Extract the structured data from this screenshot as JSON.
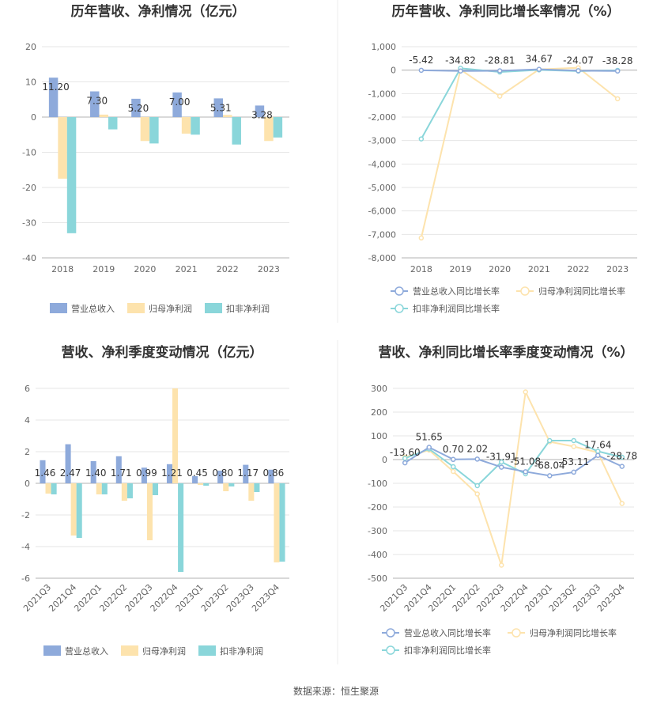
{
  "source_label": "数据来源：恒生聚源",
  "colors": {
    "revenue": "#8eaadb",
    "net_profit": "#fde3ad",
    "deducted": "#8ad6da",
    "grid": "#e6e6e6",
    "axis": "#b3b3b3"
  },
  "chart_data": [
    {
      "id": "annual-bar",
      "type": "bar",
      "title": "历年营收、净利情况（亿元）",
      "categories": [
        "2018",
        "2019",
        "2020",
        "2021",
        "2022",
        "2023"
      ],
      "series": [
        {
          "name": "营业总收入",
          "values": [
            11.2,
            7.3,
            5.2,
            7.0,
            5.31,
            3.28
          ],
          "labels": [
            "11.20",
            "7.30",
            "5.20",
            "7.00",
            "5.31",
            "3.28"
          ]
        },
        {
          "name": "归母净利润",
          "values": [
            -17.5,
            0.7,
            -6.8,
            -4.7,
            0.6,
            -6.8
          ]
        },
        {
          "name": "扣非净利润",
          "values": [
            -33.0,
            -3.5,
            -7.5,
            -5.0,
            -7.8,
            -5.8
          ]
        }
      ],
      "ylim": [
        -40,
        20
      ],
      "yticks": [
        20,
        10,
        0,
        -10,
        -20,
        -30,
        -40
      ],
      "ytick_labels": [
        "20",
        "10",
        "0",
        "-10",
        "-20",
        "-30",
        "-40"
      ],
      "grid": true,
      "legend": "bottom"
    },
    {
      "id": "annual-line",
      "type": "line",
      "title": "历年营收、净利同比增长率情况（%）",
      "categories": [
        "2018",
        "2019",
        "2020",
        "2021",
        "2022",
        "2023"
      ],
      "series": [
        {
          "name": "营业总收入同比增长率",
          "values": [
            -5.42,
            -34.82,
            -28.81,
            34.67,
            -24.07,
            -38.28
          ],
          "labels": [
            "-5.42",
            "-34.82",
            "-28.81",
            "34.67",
            "-24.07",
            "-38.28"
          ]
        },
        {
          "name": "归母净利润同比增长率",
          "values": [
            -7150,
            20,
            -1110,
            30,
            100,
            -1220
          ]
        },
        {
          "name": "扣非净利润同比增长率",
          "values": [
            -2930,
            80,
            -80,
            10,
            -40,
            -10
          ]
        }
      ],
      "ylim": [
        -8000,
        1000
      ],
      "yticks": [
        1000,
        0,
        -1000,
        -2000,
        -3000,
        -4000,
        -5000,
        -6000,
        -7000,
        -8000
      ],
      "ytick_labels": [
        "1,000",
        "0",
        "-1,000",
        "-2,000",
        "-3,000",
        "-4,000",
        "-5,000",
        "-6,000",
        "-7,000",
        "-8,000"
      ],
      "grid": true,
      "legend": "bottom"
    },
    {
      "id": "quarter-bar",
      "type": "bar",
      "title": "营收、净利季度变动情况（亿元）",
      "categories": [
        "2021Q3",
        "2021Q4",
        "2022Q1",
        "2022Q2",
        "2022Q3",
        "2022Q4",
        "2023Q1",
        "2023Q2",
        "2023Q3",
        "2023Q4"
      ],
      "series": [
        {
          "name": "营业总收入",
          "values": [
            1.46,
            2.47,
            1.4,
            1.71,
            0.99,
            1.21,
            0.45,
            0.8,
            1.17,
            0.86
          ],
          "labels": [
            "1.46",
            "2.47",
            "1.40",
            "1.71",
            "0.99",
            "1.21",
            "0.45",
            "0.80",
            "1.17",
            "0.86"
          ]
        },
        {
          "name": "归母净利润",
          "values": [
            -0.65,
            -3.3,
            -0.7,
            -1.1,
            -3.6,
            6.0,
            -0.1,
            -0.5,
            -1.1,
            -5.0
          ]
        },
        {
          "name": "扣非净利润",
          "values": [
            -0.7,
            -3.45,
            -0.7,
            -0.95,
            -0.75,
            -5.6,
            -0.15,
            -0.2,
            -0.55,
            -4.95
          ]
        }
      ],
      "ylim": [
        -6,
        6
      ],
      "yticks": [
        6,
        4,
        2,
        0,
        -2,
        -4,
        -6
      ],
      "ytick_labels": [
        "6",
        "4",
        "2",
        "0",
        "-2",
        "-4",
        "-6"
      ],
      "grid": true,
      "legend": "bottom"
    },
    {
      "id": "quarter-line",
      "type": "line",
      "title": "营收、净利同比增长率季度变动情况（%）",
      "categories": [
        "2021Q3",
        "2021Q4",
        "2022Q1",
        "2022Q2",
        "2022Q3",
        "2022Q4",
        "2023Q1",
        "2023Q2",
        "2023Q3",
        "2023Q4"
      ],
      "series": [
        {
          "name": "营业总收入同比增长率",
          "values": [
            -13.6,
            51.65,
            0.7,
            2.02,
            -31.91,
            -51.08,
            -68.04,
            -53.11,
            17.64,
            -28.78
          ],
          "labels": [
            "-13.60",
            "51.65",
            "0.70",
            "2.02",
            "-31.91",
            "-51.08",
            "-68.04",
            "-53.11",
            "17.64",
            "-28.78"
          ]
        },
        {
          "name": "归母净利润同比增长率",
          "values": [
            10,
            40,
            -50,
            -145,
            -445,
            285,
            75,
            55,
            30,
            -185
          ]
        },
        {
          "name": "扣非净利润同比增长率",
          "values": [
            5,
            45,
            -30,
            -110,
            -10,
            -60,
            80,
            80,
            35,
            10
          ]
        }
      ],
      "ylim": [
        -500,
        300
      ],
      "yticks": [
        300,
        200,
        100,
        0,
        -100,
        -200,
        -300,
        -400,
        -500
      ],
      "ytick_labels": [
        "300",
        "200",
        "100",
        "0",
        "-100",
        "-200",
        "-300",
        "-400",
        "-500"
      ],
      "grid": true,
      "legend": "bottom"
    }
  ]
}
